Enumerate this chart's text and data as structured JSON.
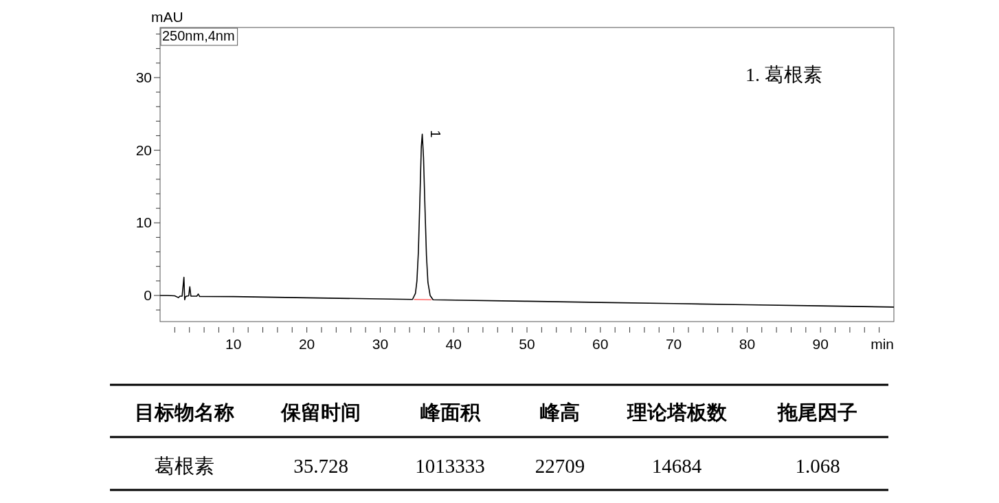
{
  "chart_data": {
    "type": "line",
    "xlabel": "min",
    "ylabel": "mAU",
    "xlim": [
      0,
      100
    ],
    "ylim": [
      -3.6,
      36.9
    ],
    "xticks": [
      {
        "value": 2,
        "label": null
      },
      {
        "value": 4,
        "label": null
      },
      {
        "value": 6,
        "label": null
      },
      {
        "value": 8,
        "label": null
      },
      10,
      {
        "value": 12,
        "label": null
      },
      {
        "value": 14,
        "label": null
      },
      {
        "value": 16,
        "label": null
      },
      {
        "value": 18,
        "label": null
      },
      20,
      {
        "value": 22,
        "label": null
      },
      {
        "value": 24,
        "label": null
      },
      {
        "value": 26,
        "label": null
      },
      {
        "value": 28,
        "label": null
      },
      30,
      {
        "value": 32,
        "label": null
      },
      {
        "value": 34,
        "label": null
      },
      {
        "value": 36,
        "label": null
      },
      {
        "value": 38,
        "label": null
      },
      40,
      {
        "value": 42,
        "label": null
      },
      {
        "value": 44,
        "label": null
      },
      {
        "value": 46,
        "label": null
      },
      {
        "value": 48,
        "label": null
      },
      50,
      {
        "value": 52,
        "label": null
      },
      {
        "value": 54,
        "label": null
      },
      {
        "value": 56,
        "label": null
      },
      {
        "value": 58,
        "label": null
      },
      60,
      {
        "value": 62,
        "label": null
      },
      {
        "value": 64,
        "label": null
      },
      {
        "value": 66,
        "label": null
      },
      {
        "value": 68,
        "label": null
      },
      70,
      {
        "value": 72,
        "label": null
      },
      {
        "value": 74,
        "label": null
      },
      {
        "value": 76,
        "label": null
      },
      {
        "value": 78,
        "label": null
      },
      80,
      {
        "value": 82,
        "label": null
      },
      {
        "value": 84,
        "label": null
      },
      {
        "value": 86,
        "label": null
      },
      {
        "value": 88,
        "label": null
      },
      90,
      {
        "value": 92,
        "label": null
      },
      {
        "value": 94,
        "label": null
      },
      {
        "value": 96,
        "label": null
      },
      {
        "value": 98,
        "label": null
      }
    ],
    "yticks": [
      {
        "value": -2,
        "label": null
      },
      0,
      {
        "value": 2,
        "label": null
      },
      {
        "value": 4,
        "label": null
      },
      {
        "value": 6,
        "label": null
      },
      {
        "value": 8,
        "label": null
      },
      10,
      {
        "value": 12,
        "label": null
      },
      {
        "value": 14,
        "label": null
      },
      {
        "value": 16,
        "label": null
      },
      {
        "value": 18,
        "label": null
      },
      20,
      {
        "value": 22,
        "label": null
      },
      {
        "value": 24,
        "label": null
      },
      {
        "value": 26,
        "label": null
      },
      {
        "value": 28,
        "label": null
      },
      30,
      {
        "value": 32,
        "label": null
      },
      {
        "value": 34,
        "label": null
      },
      {
        "value": 36,
        "label": null
      }
    ],
    "series": [
      {
        "color": "#000000",
        "x": [
          0,
          1,
          2,
          2.5,
          2.7,
          3.0,
          3.25,
          3.35,
          3.45,
          3.6,
          3.9,
          4.05,
          4.2,
          4.4,
          5.0,
          5.2,
          5.4,
          10,
          20,
          30,
          34.4,
          34.8,
          35.0,
          35.2,
          35.4,
          35.6,
          35.728,
          35.9,
          36.1,
          36.3,
          36.5,
          36.8,
          37.2,
          50,
          60,
          70,
          80,
          90,
          100
        ],
        "values": [
          0,
          0,
          -0.05,
          -0.3,
          -0.1,
          -0.1,
          2.5,
          -0.6,
          -0.2,
          -0.1,
          -0.05,
          1.2,
          -0.1,
          -0.1,
          -0.1,
          0.2,
          -0.15,
          -0.16,
          -0.32,
          -0.48,
          -0.55,
          0.3,
          2,
          6,
          13,
          20.5,
          22.2,
          19,
          12,
          5.5,
          1.8,
          0,
          -0.6,
          -0.8,
          -0.96,
          -1.12,
          -1.28,
          -1.44,
          -1.6
        ]
      },
      {
        "color": "#ff6666",
        "x": [
          34.6,
          37.0
        ],
        "values": [
          -0.55,
          -0.6
        ]
      }
    ],
    "annotations": [
      "250nm,4nm",
      "1. 葛根素",
      {
        "text": "1",
        "x": 35.728,
        "y": 22.2
      },
      "目标物名称",
      "保留时间",
      "峰面积",
      "峰高",
      "理论塔板数",
      "拖尾因子",
      "葛根素",
      "35.728",
      "1013333",
      "22709",
      "14684",
      "1.068"
    ]
  }
}
